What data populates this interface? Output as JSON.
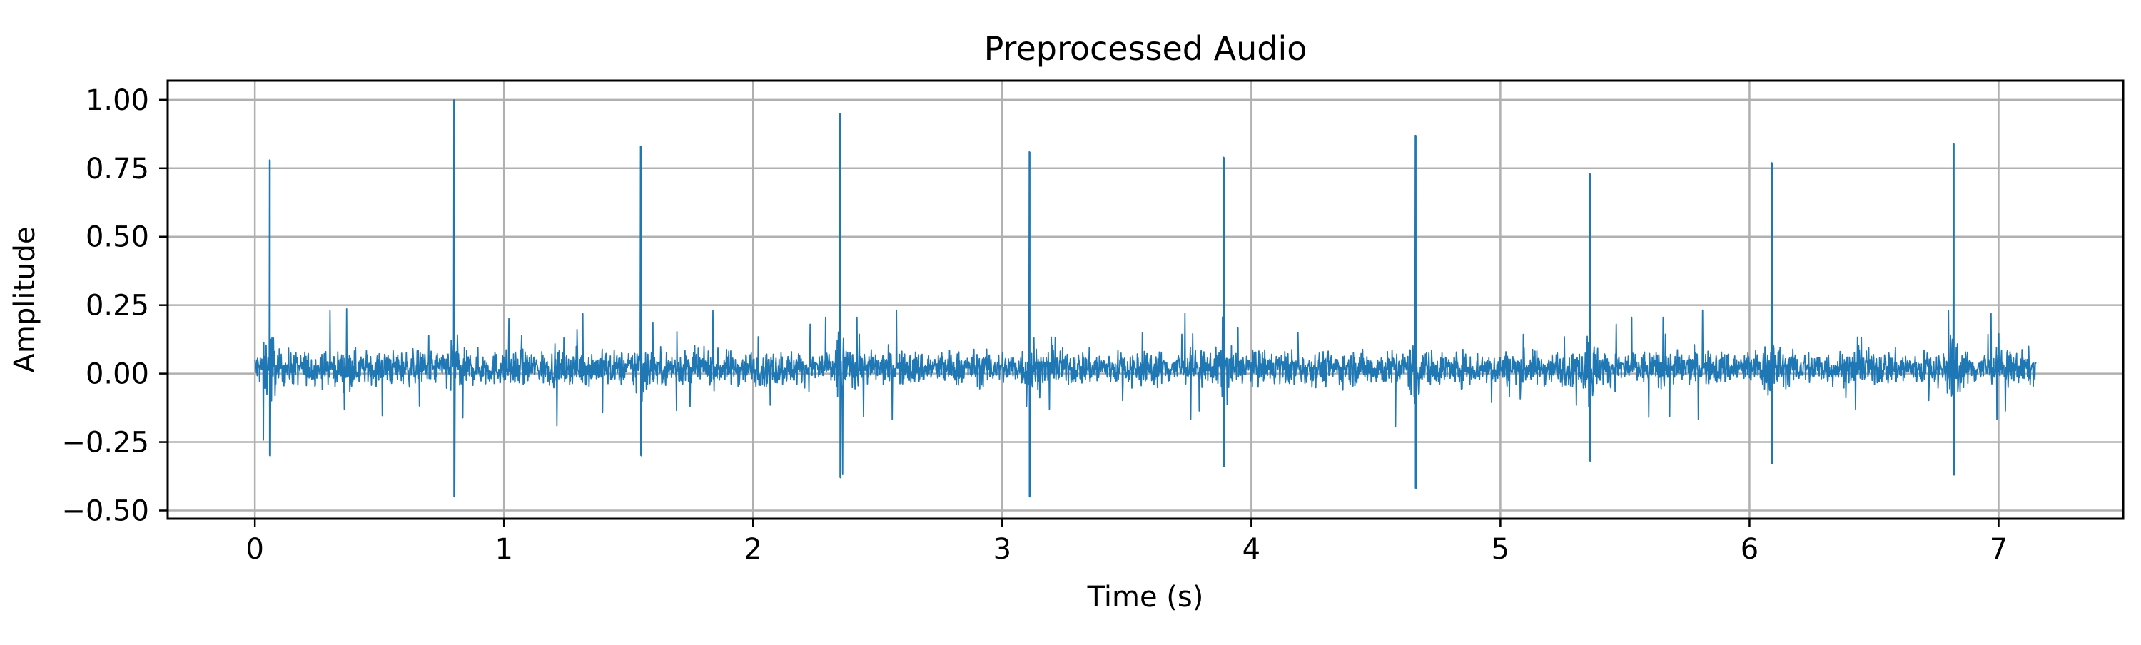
{
  "chart_data": {
    "type": "line",
    "title": "Preprocessed Audio",
    "xlabel": "Time (s)",
    "ylabel": "Amplitude",
    "xlim": [
      -0.35,
      7.5
    ],
    "ylim": [
      -0.53,
      1.07
    ],
    "xticks": [
      0,
      1,
      2,
      3,
      4,
      5,
      6,
      7
    ],
    "xtick_labels": [
      "0",
      "1",
      "2",
      "3",
      "4",
      "5",
      "6",
      "7"
    ],
    "yticks": [
      -0.5,
      -0.25,
      0.0,
      0.25,
      0.5,
      0.75,
      1.0
    ],
    "ytick_labels": [
      "−0.50",
      "−0.25",
      "0.00",
      "0.25",
      "0.50",
      "0.75",
      "1.00"
    ],
    "grid": true,
    "line_color": "#1f77b4",
    "duration": 7.15,
    "noise": {
      "center": 0.02,
      "typical_range": [
        -0.06,
        0.1
      ],
      "occasional_range": [
        -0.2,
        0.24
      ]
    },
    "spikes": [
      {
        "x": 0.06,
        "peak": 0.78,
        "trough": -0.3
      },
      {
        "x": 0.8,
        "peak": 1.0,
        "trough": -0.45
      },
      {
        "x": 1.55,
        "peak": 0.83,
        "trough": -0.3
      },
      {
        "x": 2.35,
        "peak": 0.95,
        "trough": -0.38
      },
      {
        "x": 3.11,
        "peak": 0.81,
        "trough": -0.45
      },
      {
        "x": 3.89,
        "peak": 0.79,
        "trough": -0.34
      },
      {
        "x": 4.66,
        "peak": 0.87,
        "trough": -0.42
      },
      {
        "x": 5.36,
        "peak": 0.73,
        "trough": -0.32
      },
      {
        "x": 6.09,
        "peak": 0.77,
        "trough": -0.33
      },
      {
        "x": 6.82,
        "peak": 0.84,
        "trough": -0.37
      }
    ]
  }
}
